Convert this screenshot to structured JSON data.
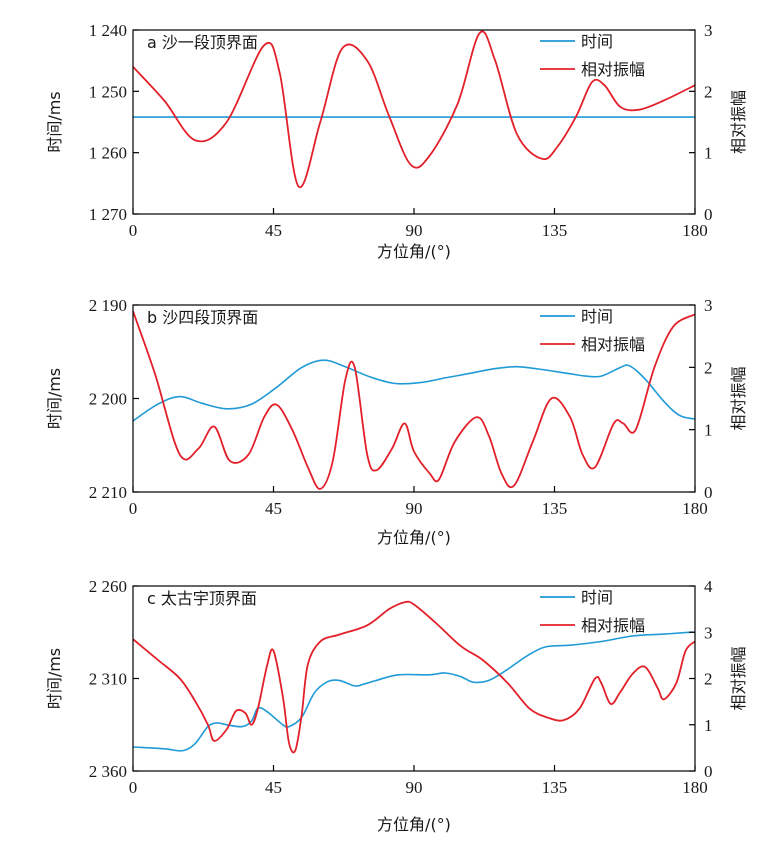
{
  "chart_data": [
    {
      "type": "line",
      "title": "a 沙一段顶界面",
      "xlabel": "方位角/(°)",
      "ylabel_left": "时间/ms",
      "ylabel_right": "相对振幅",
      "xlim": [
        0,
        180
      ],
      "x_ticks": [
        "0",
        "45",
        "90",
        "135",
        "180"
      ],
      "ylim_left": [
        1240,
        1270
      ],
      "left_axis_inverted": true,
      "y_ticks_left": [
        "1 240",
        "1 250",
        "1 260",
        "1 270"
      ],
      "ylim_right": [
        0,
        3
      ],
      "y_ticks_right": [
        "0",
        "1",
        "2",
        "3"
      ],
      "legend": [
        "时间",
        "相对振幅"
      ],
      "legend_position": "top-right",
      "colors": {
        "time": "#1f9ad6",
        "amplitude": "#e3202a"
      },
      "series": [
        {
          "name": "时间",
          "axis": "left",
          "points": [
            [
              0,
              1254.2
            ],
            [
              180,
              1254.2
            ]
          ]
        },
        {
          "name": "相对振幅",
          "axis": "right",
          "points": [
            [
              0,
              2.4
            ],
            [
              10,
              1.85
            ],
            [
              20,
              1.2
            ],
            [
              30,
              1.5
            ],
            [
              42,
              2.75
            ],
            [
              47,
              2.3
            ],
            [
              53,
              0.45
            ],
            [
              60,
              1.5
            ],
            [
              67,
              2.7
            ],
            [
              75,
              2.5
            ],
            [
              82,
              1.6
            ],
            [
              89,
              0.8
            ],
            [
              95,
              0.95
            ],
            [
              104,
              1.8
            ],
            [
              111,
              2.95
            ],
            [
              116,
              2.5
            ],
            [
              123,
              1.3
            ],
            [
              131,
              0.9
            ],
            [
              136,
              1.1
            ],
            [
              142,
              1.6
            ],
            [
              147,
              2.15
            ],
            [
              151,
              2.1
            ],
            [
              156,
              1.75
            ],
            [
              162,
              1.7
            ],
            [
              170,
              1.85
            ],
            [
              180,
              2.1
            ]
          ]
        }
      ]
    },
    {
      "type": "line",
      "title": "b 沙四段顶界面",
      "xlabel": "方位角/(°)",
      "ylabel_left": "时间/ms",
      "ylabel_right": "相对振幅",
      "xlim": [
        0,
        180
      ],
      "x_ticks": [
        "0",
        "45",
        "90",
        "135",
        "180"
      ],
      "ylim_left": [
        2190,
        2210
      ],
      "left_axis_inverted": true,
      "y_ticks_left": [
        "2 190",
        "2 200",
        "2 210"
      ],
      "ylim_right": [
        0,
        3
      ],
      "y_ticks_right": [
        "0",
        "1",
        "2",
        "3"
      ],
      "legend": [
        "时间",
        "相对振幅"
      ],
      "legend_position": "top-right",
      "colors": {
        "time": "#1f9ad6",
        "amplitude": "#e3202a"
      },
      "series": [
        {
          "name": "时间",
          "axis": "left",
          "points": [
            [
              0,
              2202.4
            ],
            [
              8,
              2200.6
            ],
            [
              15,
              2199.8
            ],
            [
              22,
              2200.5
            ],
            [
              30,
              2201.1
            ],
            [
              38,
              2200.6
            ],
            [
              46,
              2198.8
            ],
            [
              54,
              2196.7
            ],
            [
              61,
              2195.9
            ],
            [
              68,
              2196.6
            ],
            [
              76,
              2197.7
            ],
            [
              84,
              2198.4
            ],
            [
              92,
              2198.3
            ],
            [
              100,
              2197.8
            ],
            [
              108,
              2197.3
            ],
            [
              116,
              2196.8
            ],
            [
              123,
              2196.6
            ],
            [
              131,
              2196.9
            ],
            [
              139,
              2197.3
            ],
            [
              145,
              2197.6
            ],
            [
              150,
              2197.6
            ],
            [
              156,
              2196.7
            ],
            [
              159,
              2196.5
            ],
            [
              164,
              2197.9
            ],
            [
              170,
              2200.3
            ],
            [
              175,
              2201.8
            ],
            [
              180,
              2202.2
            ]
          ]
        },
        {
          "name": "相对振幅",
          "axis": "right",
          "points": [
            [
              0,
              2.9
            ],
            [
              7,
              1.9
            ],
            [
              15,
              0.6
            ],
            [
              21,
              0.7
            ],
            [
              26,
              1.05
            ],
            [
              31,
              0.5
            ],
            [
              37,
              0.6
            ],
            [
              42,
              1.2
            ],
            [
              46,
              1.4
            ],
            [
              51,
              1.0
            ],
            [
              56,
              0.4
            ],
            [
              60,
              0.05
            ],
            [
              64,
              0.5
            ],
            [
              68,
              1.8
            ],
            [
              71,
              2.0
            ],
            [
              75,
              0.6
            ],
            [
              78,
              0.35
            ],
            [
              83,
              0.7
            ],
            [
              87,
              1.1
            ],
            [
              90,
              0.65
            ],
            [
              95,
              0.3
            ],
            [
              98,
              0.2
            ],
            [
              103,
              0.8
            ],
            [
              110,
              1.2
            ],
            [
              114,
              0.9
            ],
            [
              118,
              0.3
            ],
            [
              122,
              0.1
            ],
            [
              128,
              0.8
            ],
            [
              134,
              1.5
            ],
            [
              140,
              1.2
            ],
            [
              144,
              0.6
            ],
            [
              148,
              0.4
            ],
            [
              154,
              1.1
            ],
            [
              157,
              1.1
            ],
            [
              161,
              1.0
            ],
            [
              167,
              2.0
            ],
            [
              173,
              2.65
            ],
            [
              180,
              2.85
            ]
          ]
        }
      ]
    },
    {
      "type": "line",
      "title": "c 太古宇顶界面",
      "xlabel": "方位角/(°)",
      "ylabel_left": "时间/ms",
      "ylabel_right": "相对振幅",
      "xlim": [
        0,
        180
      ],
      "x_ticks": [
        "0",
        "45",
        "90",
        "135",
        "180"
      ],
      "ylim_left": [
        2260,
        2360
      ],
      "left_axis_inverted": true,
      "y_ticks_left": [
        "2 260",
        "2 310",
        "2 360"
      ],
      "ylim_right": [
        0,
        4
      ],
      "y_ticks_right": [
        "0",
        "1",
        "2",
        "3",
        "4"
      ],
      "legend": [
        "时间",
        "相对振幅"
      ],
      "legend_position": "top-right",
      "colors": {
        "time": "#1f9ad6",
        "amplitude": "#e3202a"
      },
      "series": [
        {
          "name": "时间",
          "axis": "left",
          "points": [
            [
              0,
              2347
            ],
            [
              10,
              2348
            ],
            [
              16,
              2349
            ],
            [
              20,
              2345
            ],
            [
              24,
              2336
            ],
            [
              27,
              2334
            ],
            [
              30,
              2335
            ],
            [
              35,
              2336
            ],
            [
              38,
              2333
            ],
            [
              40,
              2326
            ],
            [
              43,
              2328
            ],
            [
              48,
              2335
            ],
            [
              50,
              2336
            ],
            [
              54,
              2331
            ],
            [
              58,
              2318
            ],
            [
              62,
              2312
            ],
            [
              66,
              2311
            ],
            [
              71,
              2314
            ],
            [
              74,
              2313
            ],
            [
              78,
              2311
            ],
            [
              85,
              2308
            ],
            [
              95,
              2308
            ],
            [
              100,
              2307
            ],
            [
              105,
              2309
            ],
            [
              109,
              2312
            ],
            [
              114,
              2311
            ],
            [
              120,
              2305
            ],
            [
              126,
              2298
            ],
            [
              132,
              2293
            ],
            [
              140,
              2292
            ],
            [
              150,
              2290
            ],
            [
              160,
              2287
            ],
            [
              170,
              2286
            ],
            [
              178,
              2285
            ],
            [
              180,
              2285
            ]
          ]
        },
        {
          "name": "相对振幅",
          "axis": "right",
          "points": [
            [
              0,
              2.85
            ],
            [
              8,
              2.4
            ],
            [
              15,
              2.0
            ],
            [
              20,
              1.5
            ],
            [
              24,
              1.0
            ],
            [
              26,
              0.65
            ],
            [
              30,
              0.9
            ],
            [
              33,
              1.3
            ],
            [
              36,
              1.25
            ],
            [
              38,
              1.0
            ],
            [
              40,
              1.35
            ],
            [
              43,
              2.3
            ],
            [
              45,
              2.6
            ],
            [
              48,
              1.6
            ],
            [
              50,
              0.6
            ],
            [
              52,
              0.45
            ],
            [
              54,
              1.2
            ],
            [
              56,
              2.3
            ],
            [
              60,
              2.8
            ],
            [
              66,
              2.95
            ],
            [
              75,
              3.15
            ],
            [
              82,
              3.5
            ],
            [
              87,
              3.65
            ],
            [
              90,
              3.6
            ],
            [
              97,
              3.2
            ],
            [
              105,
              2.7
            ],
            [
              112,
              2.4
            ],
            [
              120,
              1.9
            ],
            [
              127,
              1.35
            ],
            [
              133,
              1.15
            ],
            [
              138,
              1.1
            ],
            [
              143,
              1.35
            ],
            [
              148,
              2.0
            ],
            [
              150,
              1.9
            ],
            [
              153,
              1.45
            ],
            [
              156,
              1.7
            ],
            [
              160,
              2.1
            ],
            [
              164,
              2.25
            ],
            [
              168,
              1.8
            ],
            [
              170,
              1.55
            ],
            [
              174,
              1.9
            ],
            [
              177,
              2.6
            ],
            [
              180,
              2.8
            ]
          ]
        }
      ]
    }
  ]
}
